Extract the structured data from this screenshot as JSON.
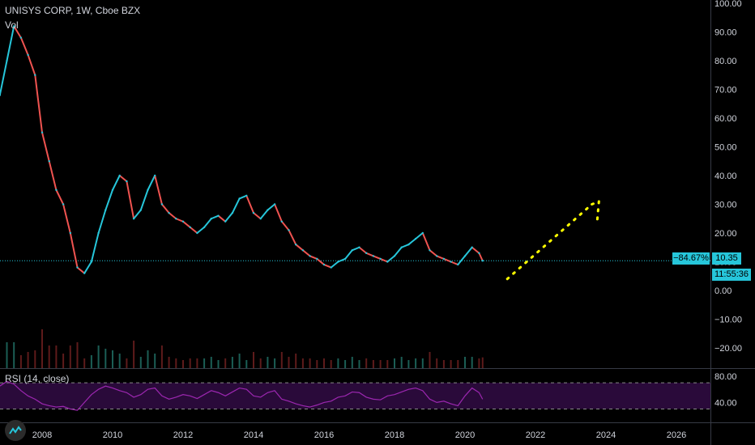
{
  "header": {
    "title": "UNISYS CORP, 1W, Cboe BZX",
    "volume_label": "Vol",
    "rsi_label": "RSI (14, close)"
  },
  "price_badges": {
    "change": "−84.67%",
    "price": "10.35",
    "countdown": "11:55:36"
  },
  "colors": {
    "background": "#000000",
    "candle_up": "#26c6da",
    "candle_down": "#ef5350",
    "price_line": "#26c6da",
    "rsi_line": "#9c27b0",
    "rsi_band": "#2a0a3a",
    "projection": "#ffff00",
    "axis_text": "#d1d4dc"
  },
  "icons": {
    "logo": "tradingview-logo-icon"
  },
  "chart_data": [
    {
      "type": "line",
      "title": "UNISYS CORP, 1W, Cboe BZX",
      "y_ticks": [
        "100.00",
        "90.00",
        "80.00",
        "70.00",
        "60.00",
        "50.00",
        "40.00",
        "30.00",
        "20.00",
        "10.00",
        "0.00",
        "−10.00",
        "−20.00"
      ],
      "x_ticks": [
        "2008",
        "2010",
        "2012",
        "2014",
        "2016",
        "2018",
        "2020",
        "2022",
        "2024",
        "2026"
      ],
      "ylim": [
        -20,
        100
      ],
      "current_price": 10.35,
      "series": [
        {
          "x": [
            2006.8,
            2007.0,
            2007.2,
            2007.4,
            2007.6,
            2007.8,
            2008.0,
            2008.2,
            2008.4,
            2008.6,
            2008.8,
            2009.0,
            2009.2,
            2009.4,
            2009.6,
            2009.8,
            2010.0,
            2010.2,
            2010.4,
            2010.6,
            2010.8,
            2011.0,
            2011.2,
            2011.4,
            2011.6,
            2011.8,
            2012.0,
            2012.2,
            2012.4,
            2012.6,
            2012.8,
            2013.0,
            2013.2,
            2013.4,
            2013.6,
            2013.8,
            2014.0,
            2014.2,
            2014.4,
            2014.6,
            2014.8,
            2015.0,
            2015.2,
            2015.4,
            2015.6,
            2015.8,
            2016.0,
            2016.2,
            2016.4,
            2016.6,
            2016.8,
            2017.0,
            2017.2,
            2017.4,
            2017.6,
            2017.8,
            2018.0,
            2018.2,
            2018.4,
            2018.6,
            2018.8,
            2019.0,
            2019.2,
            2019.4,
            2019.6,
            2019.8,
            2020.0,
            2020.2,
            2020.4,
            2020.5
          ],
          "values": [
            68,
            80,
            92,
            88,
            82,
            75,
            55,
            45,
            35,
            30,
            20,
            8,
            6,
            10,
            20,
            28,
            35,
            40,
            38,
            25,
            28,
            35,
            40,
            30,
            27,
            25,
            24,
            22,
            20,
            22,
            25,
            26,
            24,
            27,
            32,
            33,
            27,
            25,
            28,
            30,
            24,
            21,
            16,
            14,
            12,
            11,
            9,
            8,
            10,
            11,
            14,
            15,
            13,
            12,
            11,
            10,
            12,
            15,
            16,
            18,
            20,
            14,
            12,
            11,
            10,
            9,
            12,
            15,
            13,
            10.35
          ]
        },
        {
          "name": "projection",
          "x": [
            2021.2,
            2023.6,
            2023.8,
            2023.75
          ],
          "values": [
            4,
            30,
            31,
            24
          ]
        }
      ]
    },
    {
      "type": "line",
      "title": "RSI (14, close)",
      "y_ticks": [
        "80.00",
        "40.00"
      ],
      "ylim": [
        20,
        90
      ],
      "bands": [
        70,
        30
      ],
      "series": [
        {
          "x": [
            2006.8,
            2007.0,
            2007.2,
            2007.4,
            2007.6,
            2007.8,
            2008.0,
            2008.2,
            2008.4,
            2008.6,
            2008.8,
            2009.0,
            2009.2,
            2009.4,
            2009.6,
            2009.8,
            2010.0,
            2010.2,
            2010.4,
            2010.6,
            2010.8,
            2011.0,
            2011.2,
            2011.4,
            2011.6,
            2011.8,
            2012.0,
            2012.2,
            2012.4,
            2012.6,
            2012.8,
            2013.0,
            2013.2,
            2013.4,
            2013.6,
            2013.8,
            2014.0,
            2014.2,
            2014.4,
            2014.6,
            2014.8,
            2015.0,
            2015.2,
            2015.4,
            2015.6,
            2015.8,
            2016.0,
            2016.2,
            2016.4,
            2016.6,
            2016.8,
            2017.0,
            2017.2,
            2017.4,
            2017.6,
            2017.8,
            2018.0,
            2018.2,
            2018.4,
            2018.6,
            2018.8,
            2019.0,
            2019.2,
            2019.4,
            2019.6,
            2019.8,
            2020.0,
            2020.2,
            2020.4,
            2020.5
          ],
          "values": [
            65,
            72,
            68,
            58,
            50,
            45,
            38,
            35,
            33,
            34,
            30,
            28,
            40,
            52,
            60,
            65,
            62,
            58,
            55,
            48,
            52,
            60,
            62,
            50,
            45,
            48,
            52,
            50,
            46,
            52,
            58,
            55,
            50,
            56,
            62,
            60,
            50,
            48,
            55,
            58,
            45,
            42,
            38,
            35,
            33,
            36,
            40,
            42,
            48,
            50,
            56,
            55,
            48,
            45,
            44,
            50,
            52,
            56,
            60,
            62,
            58,
            45,
            40,
            42,
            38,
            35,
            50,
            62,
            55,
            45
          ]
        }
      ]
    }
  ]
}
